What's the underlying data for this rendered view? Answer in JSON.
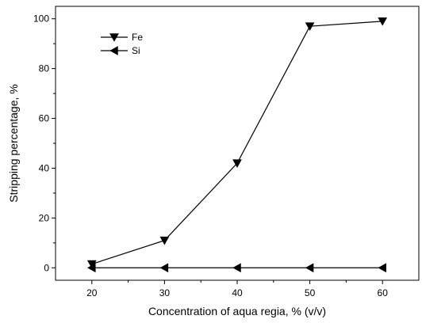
{
  "chart_data": {
    "type": "line",
    "xlabel": "Concentration of aqua regia, % (v/v)",
    "ylabel": "Stripping percentage, %",
    "x": [
      20,
      30,
      40,
      50,
      60
    ],
    "xlim": [
      15,
      65
    ],
    "ylim": [
      -5,
      105
    ],
    "xticks": [
      20,
      30,
      40,
      50,
      60
    ],
    "yticks": [
      0,
      20,
      40,
      60,
      80,
      100
    ],
    "legend": "top-left",
    "grid": false,
    "series": [
      {
        "name": "Fe",
        "marker": "triangle-down",
        "color": "#000000",
        "values": [
          1.5,
          11,
          42,
          97,
          99
        ]
      },
      {
        "name": "Si",
        "marker": "triangle-left",
        "color": "#000000",
        "values": [
          0,
          0,
          0,
          0,
          0
        ]
      }
    ]
  }
}
